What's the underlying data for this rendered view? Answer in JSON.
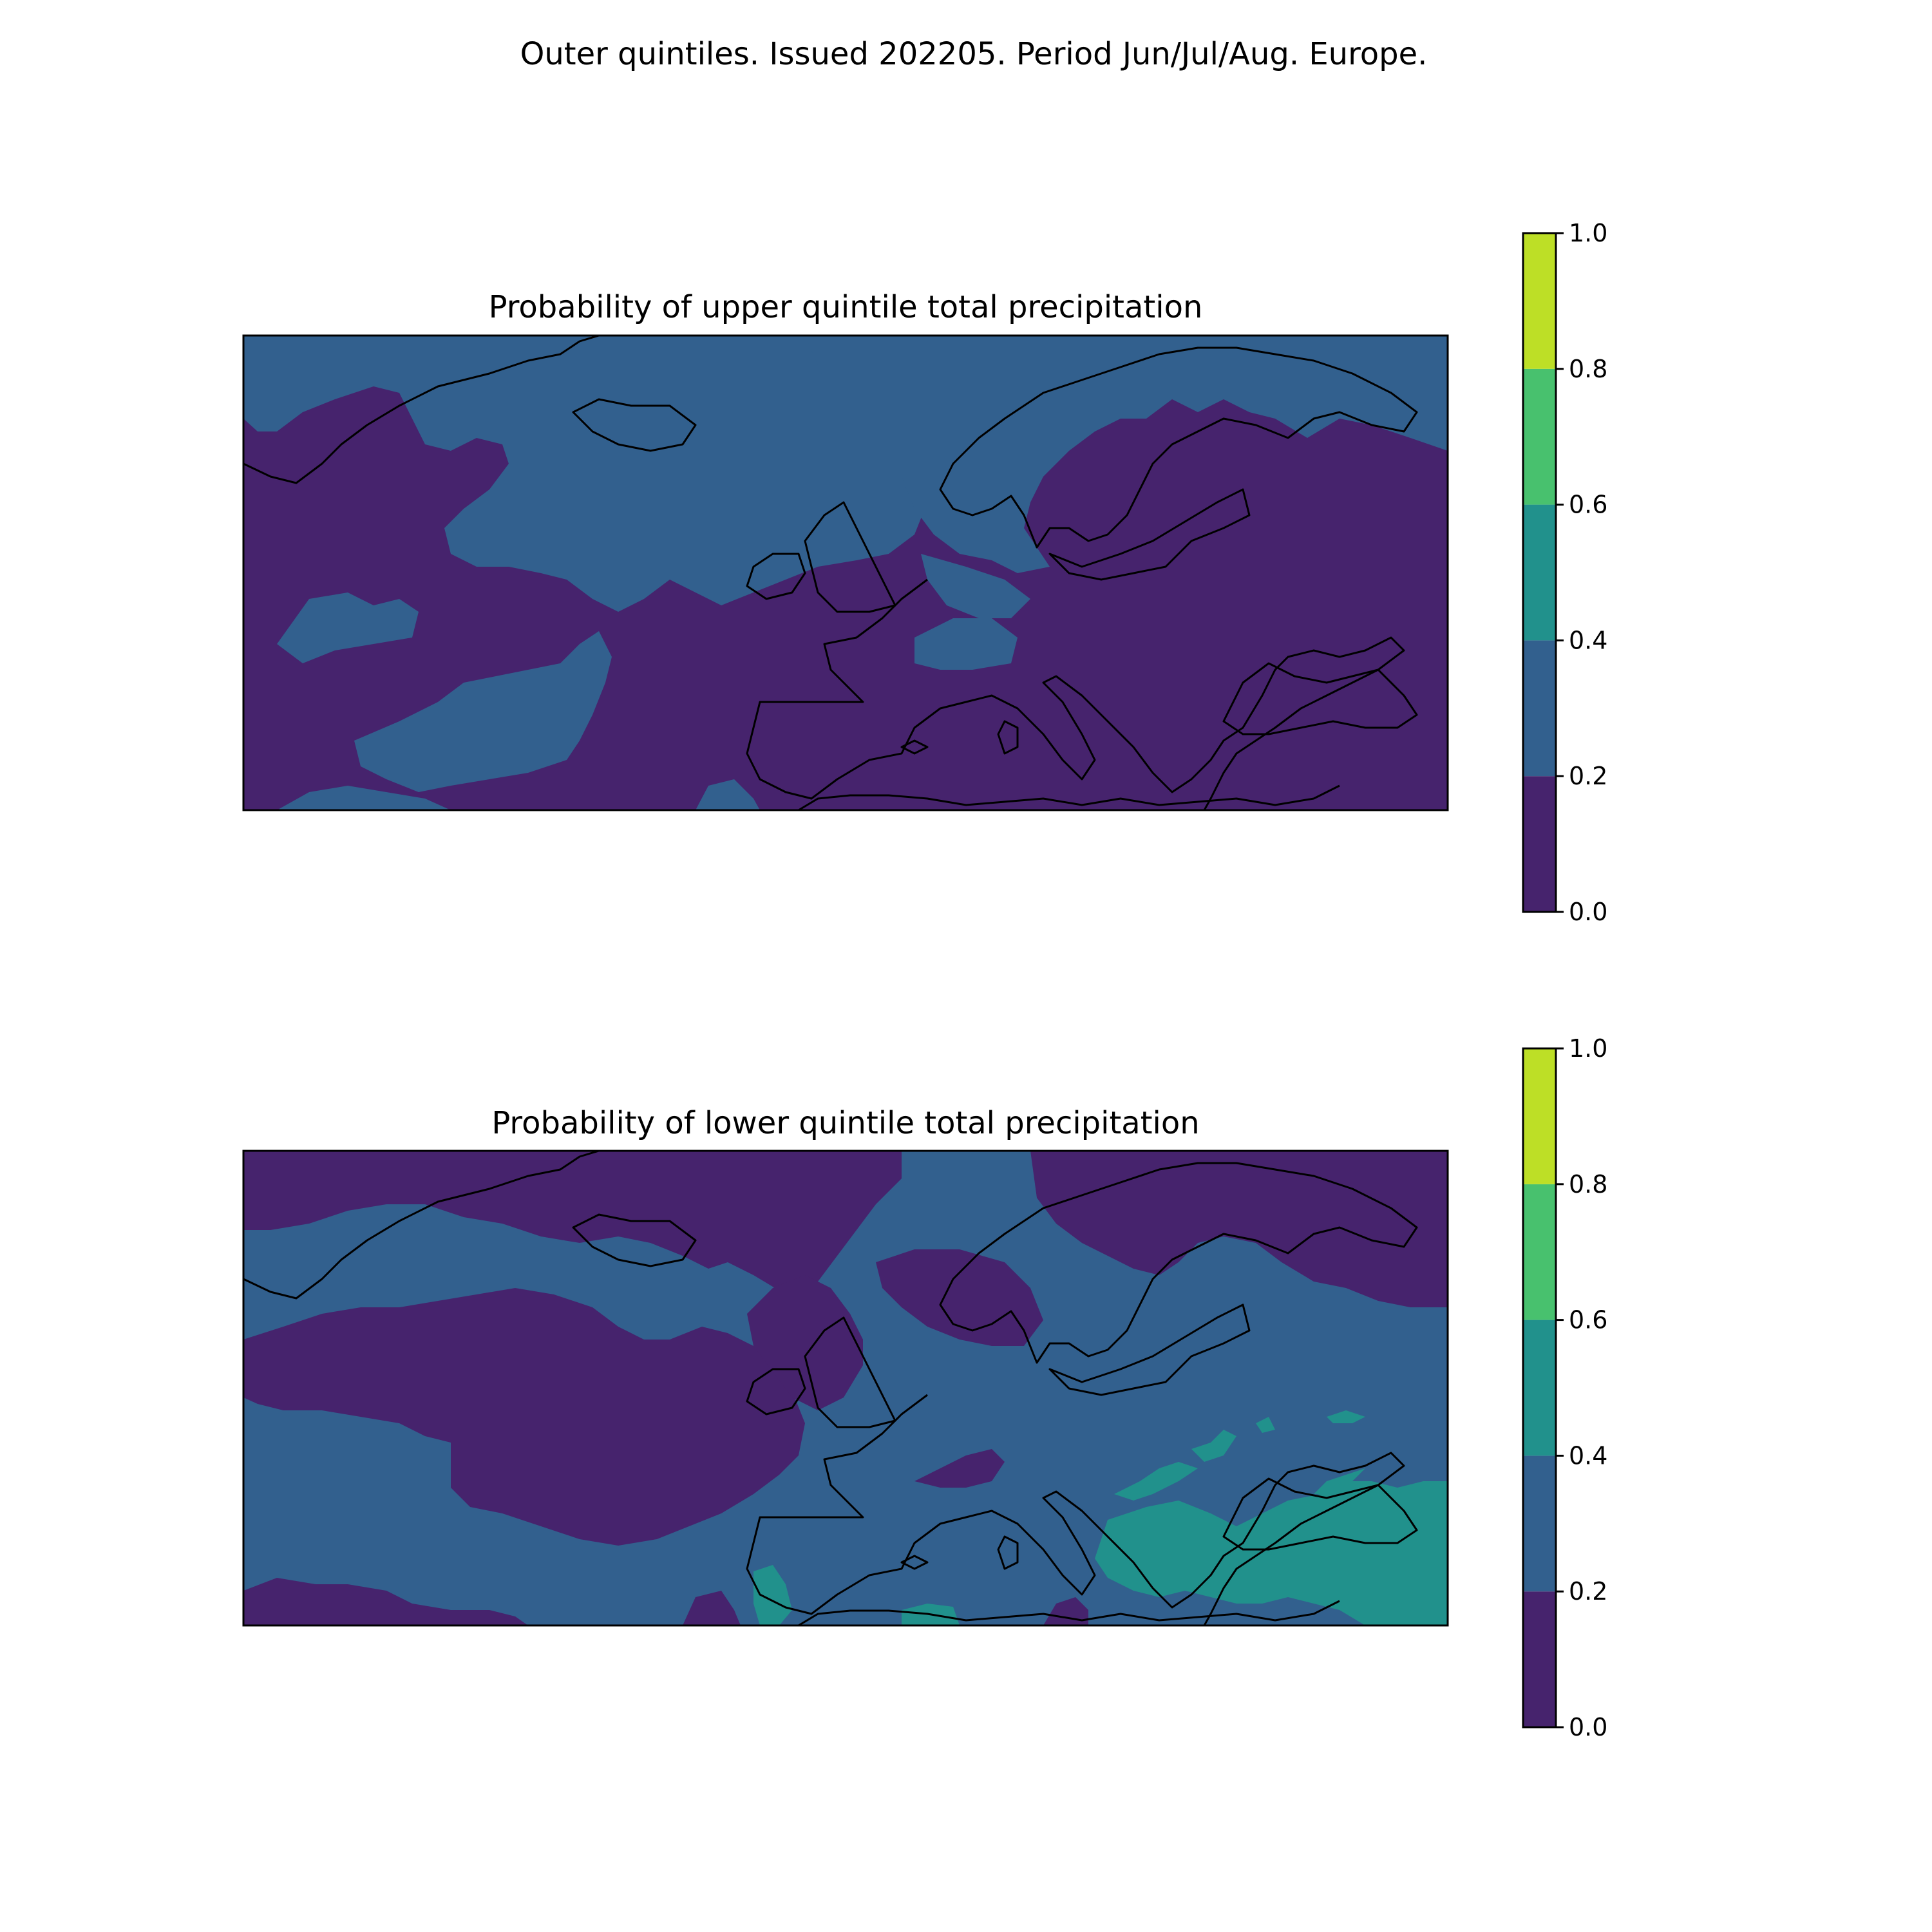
{
  "figure": {
    "title": "Outer quintiles. Issued 202205. Period Jun/Jul/Aug. Europe."
  },
  "palette": {
    "bins": [
      "#440154",
      "#3b528b",
      "#21918c",
      "#5ec962",
      "#fde725"
    ],
    "bins_shown": [
      "#46236d",
      "#32608e",
      "#21918c",
      "#48c16e",
      "#bddf26"
    ],
    "coastline": "#000000",
    "frame": "#000000"
  },
  "colorbar": {
    "levels": [
      0.0,
      0.2,
      0.4,
      0.6,
      0.8,
      1.0
    ],
    "tick_labels": [
      "0.0",
      "0.2",
      "0.4",
      "0.6",
      "0.8",
      "1.0"
    ]
  },
  "chart_data": [
    {
      "type": "heatmap",
      "title": "Probability of upper quintile total precipitation",
      "color_range": [
        0,
        1
      ],
      "dominant_class": "0.0–0.2",
      "secondary_class": "0.2–0.4",
      "secondary_regions": [
        "North Atlantic near Iceland",
        "Norwegian Sea",
        "Scandinavia / North Sea",
        "central Atlantic band",
        "Bay of Biscay area"
      ]
    },
    {
      "type": "heatmap",
      "title": "Probability of lower quintile total precipitation",
      "color_range": [
        0,
        1
      ],
      "dominant_class": "0.2–0.4",
      "secondary_class": "0.0–0.2",
      "tertiary_class": "0.4–0.6",
      "tertiary_regions": [
        "Turkey / Black Sea area",
        "Balkans",
        "North Africa coast"
      ]
    }
  ]
}
